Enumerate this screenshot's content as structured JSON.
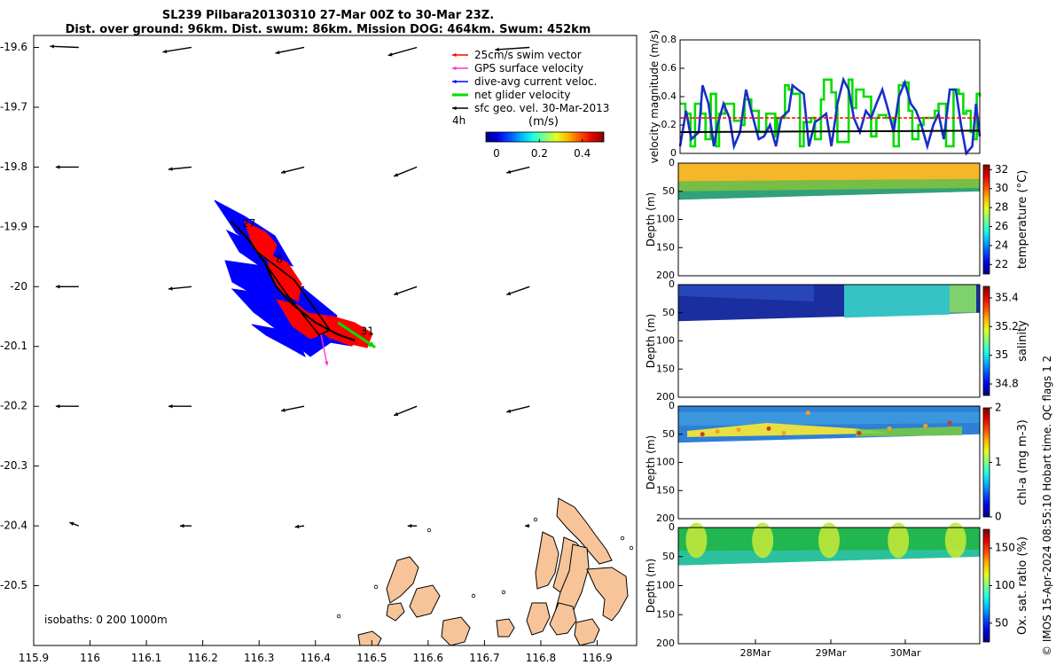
{
  "title_line1": "SL239 Pilbara20130310 27-Mar 00Z to 30-Mar 23Z.",
  "title_line2": "Dist. over ground: 96km. Dist. swum: 86km. Mission DOG: 464km. Swum: 452km",
  "credit": "© IMOS 15-Apr-2024 08:55:10 Hobart time. QC flags 1  2",
  "colors": {
    "swim": "#ff0000",
    "gps": "#ff33cc",
    "current": "#0000ff",
    "net": "#00dd00",
    "geo": "#000000",
    "land": "#f7c499",
    "tempBand": "#f6b62a",
    "salBand": "#1a2ea0",
    "chlBand": "#2f7fd6",
    "oxBand": "#22b650"
  },
  "chart_data": [
    {
      "type": "scatter",
      "name": "track-map",
      "xlim": [
        115.9,
        116.97
      ],
      "ylim": [
        -20.6,
        -19.58
      ],
      "xticks": [
        115.9,
        116,
        116.1,
        116.2,
        116.3,
        116.4,
        116.5,
        116.6,
        116.7,
        116.8,
        116.9
      ],
      "yticks": [
        -19.6,
        -19.7,
        -19.8,
        -19.9,
        -20,
        -20.1,
        -20.2,
        -20.3,
        -20.4,
        -20.5
      ],
      "legend": {
        "entries": [
          {
            "label": "25cm/s swim vector",
            "color": "#ff0000"
          },
          {
            "label": "GPS surface velocity",
            "color": "#ff33cc"
          },
          {
            "label": "dive-avg current veloc.",
            "color": "#0000ff"
          },
          {
            "label": "net glider velocity",
            "color": "#00dd00"
          },
          {
            "label": "sfc geo. vel. 30-Mar-2013",
            "color": "#000000"
          }
        ],
        "note": "4h",
        "colorbar_label": "(m/s)",
        "colorbar_ticks": [
          0,
          0.2,
          0.4
        ],
        "placement": "top-right"
      },
      "isobaths_label": "isobaths: 0   200  1000m",
      "track_labels": [
        {
          "text": "27",
          "lon": 116.27,
          "lat": -19.9
        },
        {
          "text": "8",
          "lon": 116.33,
          "lat": -19.96
        },
        {
          "text": "31",
          "lon": 116.48,
          "lat": -20.08
        }
      ],
      "track": [
        {
          "lon": 116.25,
          "lat": -19.89
        },
        {
          "lon": 116.28,
          "lat": -19.92
        },
        {
          "lon": 116.31,
          "lat": -19.96
        },
        {
          "lon": 116.33,
          "lat": -20.0
        },
        {
          "lon": 116.36,
          "lat": -20.03
        },
        {
          "lon": 116.4,
          "lat": -20.06
        },
        {
          "lon": 116.44,
          "lat": -20.08
        },
        {
          "lon": 116.47,
          "lat": -20.09
        }
      ],
      "geo_vectors": [
        {
          "lon": 115.98,
          "lat": -19.6,
          "u": -0.25,
          "v": 0.01
        },
        {
          "lon": 116.18,
          "lat": -19.6,
          "u": -0.25,
          "v": -0.04
        },
        {
          "lon": 116.38,
          "lat": -19.6,
          "u": -0.25,
          "v": -0.05
        },
        {
          "lon": 116.58,
          "lat": -19.6,
          "u": -0.25,
          "v": -0.07
        },
        {
          "lon": 116.78,
          "lat": -19.6,
          "u": -0.3,
          "v": -0.02
        },
        {
          "lon": 115.98,
          "lat": -19.8,
          "u": -0.2,
          "v": 0.0
        },
        {
          "lon": 116.18,
          "lat": -19.8,
          "u": -0.2,
          "v": -0.02
        },
        {
          "lon": 116.38,
          "lat": -19.8,
          "u": -0.2,
          "v": -0.05
        },
        {
          "lon": 116.58,
          "lat": -19.8,
          "u": -0.2,
          "v": -0.08
        },
        {
          "lon": 116.78,
          "lat": -19.8,
          "u": -0.2,
          "v": -0.05
        },
        {
          "lon": 115.98,
          "lat": -20.0,
          "u": -0.2,
          "v": 0.0
        },
        {
          "lon": 116.18,
          "lat": -20.0,
          "u": -0.2,
          "v": -0.02
        },
        {
          "lon": 116.38,
          "lat": -20.0,
          "u": -0.2,
          "v": -0.05
        },
        {
          "lon": 116.58,
          "lat": -20.0,
          "u": -0.2,
          "v": -0.07
        },
        {
          "lon": 116.78,
          "lat": -20.0,
          "u": -0.2,
          "v": -0.07
        },
        {
          "lon": 115.98,
          "lat": -20.2,
          "u": -0.2,
          "v": 0.0
        },
        {
          "lon": 116.18,
          "lat": -20.2,
          "u": -0.2,
          "v": 0.0
        },
        {
          "lon": 116.38,
          "lat": -20.2,
          "u": -0.2,
          "v": -0.04
        },
        {
          "lon": 116.58,
          "lat": -20.2,
          "u": -0.2,
          "v": -0.08
        },
        {
          "lon": 116.78,
          "lat": -20.2,
          "u": -0.2,
          "v": -0.05
        },
        {
          "lon": 115.98,
          "lat": -20.4,
          "u": -0.08,
          "v": 0.03
        },
        {
          "lon": 116.18,
          "lat": -20.4,
          "u": -0.1,
          "v": 0.0
        },
        {
          "lon": 116.38,
          "lat": -20.4,
          "u": -0.08,
          "v": -0.01
        },
        {
          "lon": 116.58,
          "lat": -20.4,
          "u": -0.08,
          "v": 0.0
        },
        {
          "lon": 116.78,
          "lat": -20.4,
          "u": -0.04,
          "v": 0.0
        }
      ],
      "net_velocity": {
        "lon": 116.44,
        "lat": -20.06,
        "u": 0.6,
        "v": -0.4
      },
      "gps_velocity": {
        "lon": 116.41,
        "lat": -20.08,
        "u": 0.1,
        "v": -0.5
      }
    },
    {
      "type": "line",
      "name": "velocity-magnitude",
      "ylabel": "velocity magnitude (m/s)",
      "ylim": [
        0,
        0.8
      ],
      "yticks": [
        0,
        0.2,
        0.4,
        0.6,
        0.8
      ],
      "xlim": [
        0,
        4
      ],
      "series": [
        {
          "color": "#00dd00",
          "step": true,
          "x": [
            0,
            0.07,
            0.14,
            0.2,
            0.28,
            0.34,
            0.41,
            0.48,
            0.52,
            0.6,
            0.72,
            0.82,
            0.86,
            0.95,
            1.05,
            1.15,
            1.27,
            1.3,
            1.4,
            1.45,
            1.5,
            1.6,
            1.65,
            1.75,
            1.8,
            1.88,
            1.92,
            2.02,
            2.08,
            2.1,
            2.25,
            2.3,
            2.35,
            2.45,
            2.55,
            2.62,
            2.65,
            2.75,
            2.85,
            2.92,
            2.98,
            3.05,
            3.1,
            3.18,
            3.25,
            3.3,
            3.4,
            3.45,
            3.55,
            3.65,
            3.72,
            3.78,
            3.82,
            3.88,
            3.92,
            3.96,
            4.0
          ],
          "values": [
            0.35,
            0.28,
            0.05,
            0.35,
            0.28,
            0.1,
            0.42,
            0.05,
            0.28,
            0.35,
            0.23,
            0.2,
            0.38,
            0.3,
            0.15,
            0.28,
            0.12,
            0.25,
            0.48,
            0.45,
            0.42,
            0.05,
            0.22,
            0.25,
            0.1,
            0.38,
            0.52,
            0.43,
            0.32,
            0.08,
            0.52,
            0.32,
            0.45,
            0.4,
            0.12,
            0.25,
            0.27,
            0.25,
            0.05,
            0.48,
            0.5,
            0.3,
            0.1,
            0.2,
            0.25,
            0.25,
            0.3,
            0.35,
            0.05,
            0.45,
            0.42,
            0.28,
            0.3,
            0.15,
            0.1,
            0.42,
            0.4
          ]
        },
        {
          "color": "#1a2ecc",
          "step": false,
          "x": [
            0,
            0.08,
            0.15,
            0.25,
            0.3,
            0.38,
            0.45,
            0.5,
            0.58,
            0.66,
            0.72,
            0.8,
            0.88,
            0.95,
            1.05,
            1.12,
            1.2,
            1.28,
            1.35,
            1.45,
            1.5,
            1.57,
            1.65,
            1.72,
            1.8,
            1.88,
            1.95,
            2.02,
            2.1,
            2.18,
            2.25,
            2.32,
            2.4,
            2.48,
            2.55,
            2.62,
            2.7,
            2.78,
            2.85,
            2.92,
            3.0,
            3.08,
            3.15,
            3.22,
            3.3,
            3.38,
            3.45,
            3.52,
            3.6,
            3.68,
            3.75,
            3.82,
            3.9,
            3.95,
            4.0
          ],
          "values": [
            0.05,
            0.3,
            0.1,
            0.15,
            0.48,
            0.35,
            0.05,
            0.2,
            0.35,
            0.25,
            0.05,
            0.15,
            0.45,
            0.3,
            0.1,
            0.12,
            0.2,
            0.05,
            0.25,
            0.3,
            0.48,
            0.45,
            0.42,
            0.05,
            0.22,
            0.25,
            0.28,
            0.05,
            0.35,
            0.52,
            0.45,
            0.25,
            0.15,
            0.3,
            0.25,
            0.35,
            0.45,
            0.3,
            0.15,
            0.4,
            0.5,
            0.35,
            0.3,
            0.2,
            0.05,
            0.2,
            0.28,
            0.1,
            0.45,
            0.45,
            0.2,
            0.0,
            0.05,
            0.35,
            0.12
          ]
        },
        {
          "color": "#ff0000",
          "style": "dashed",
          "x": [
            0,
            4
          ],
          "values": [
            0.25,
            0.25
          ]
        },
        {
          "color": "#000000",
          "x": [
            0,
            4
          ],
          "values": [
            0.15,
            0.16
          ]
        }
      ]
    },
    {
      "type": "heatmap",
      "name": "temperature-section",
      "ylabel": "Depth (m)",
      "colorbar_label": "temperature (°C)",
      "ylim": [
        200,
        0
      ],
      "yticks": [
        0,
        50,
        100,
        150,
        200
      ],
      "colorbar_ticks": [
        22,
        24,
        26,
        28,
        30,
        32
      ],
      "colorbar_range": [
        21,
        32.5
      ],
      "bottom_depth_start": 65,
      "bottom_depth_end": 50
    },
    {
      "type": "heatmap",
      "name": "salinity-section",
      "ylabel": "Depth (m)",
      "colorbar_label": "salinity",
      "ylim": [
        200,
        0
      ],
      "yticks": [
        0,
        50,
        100,
        150,
        200
      ],
      "colorbar_ticks": [
        34.8,
        35,
        35.2,
        35.4
      ],
      "colorbar_range": [
        34.72,
        35.48
      ],
      "bottom_depth_start": 65,
      "bottom_depth_end": 50
    },
    {
      "type": "heatmap",
      "name": "chla-section",
      "ylabel": "Depth (m)",
      "colorbar_label": "chl-a (mg m-3)",
      "ylim": [
        200,
        0
      ],
      "yticks": [
        0,
        50,
        100,
        150,
        200
      ],
      "colorbar_ticks": [
        0,
        1,
        2
      ],
      "colorbar_range": [
        0,
        2
      ],
      "bottom_depth_start": 65,
      "bottom_depth_end": 50
    },
    {
      "type": "heatmap",
      "name": "oxygen-section",
      "ylabel": "Depth (m)",
      "colorbar_label": "Ox. sat. ratio (%)",
      "ylim": [
        200,
        0
      ],
      "yticks": [
        0,
        50,
        100,
        150,
        200
      ],
      "colorbar_ticks": [
        50,
        100,
        150
      ],
      "colorbar_range": [
        25,
        175
      ],
      "xticks": [
        "28Mar",
        "29Mar",
        "30Mar"
      ],
      "bottom_depth_start": 65,
      "bottom_depth_end": 50
    }
  ]
}
